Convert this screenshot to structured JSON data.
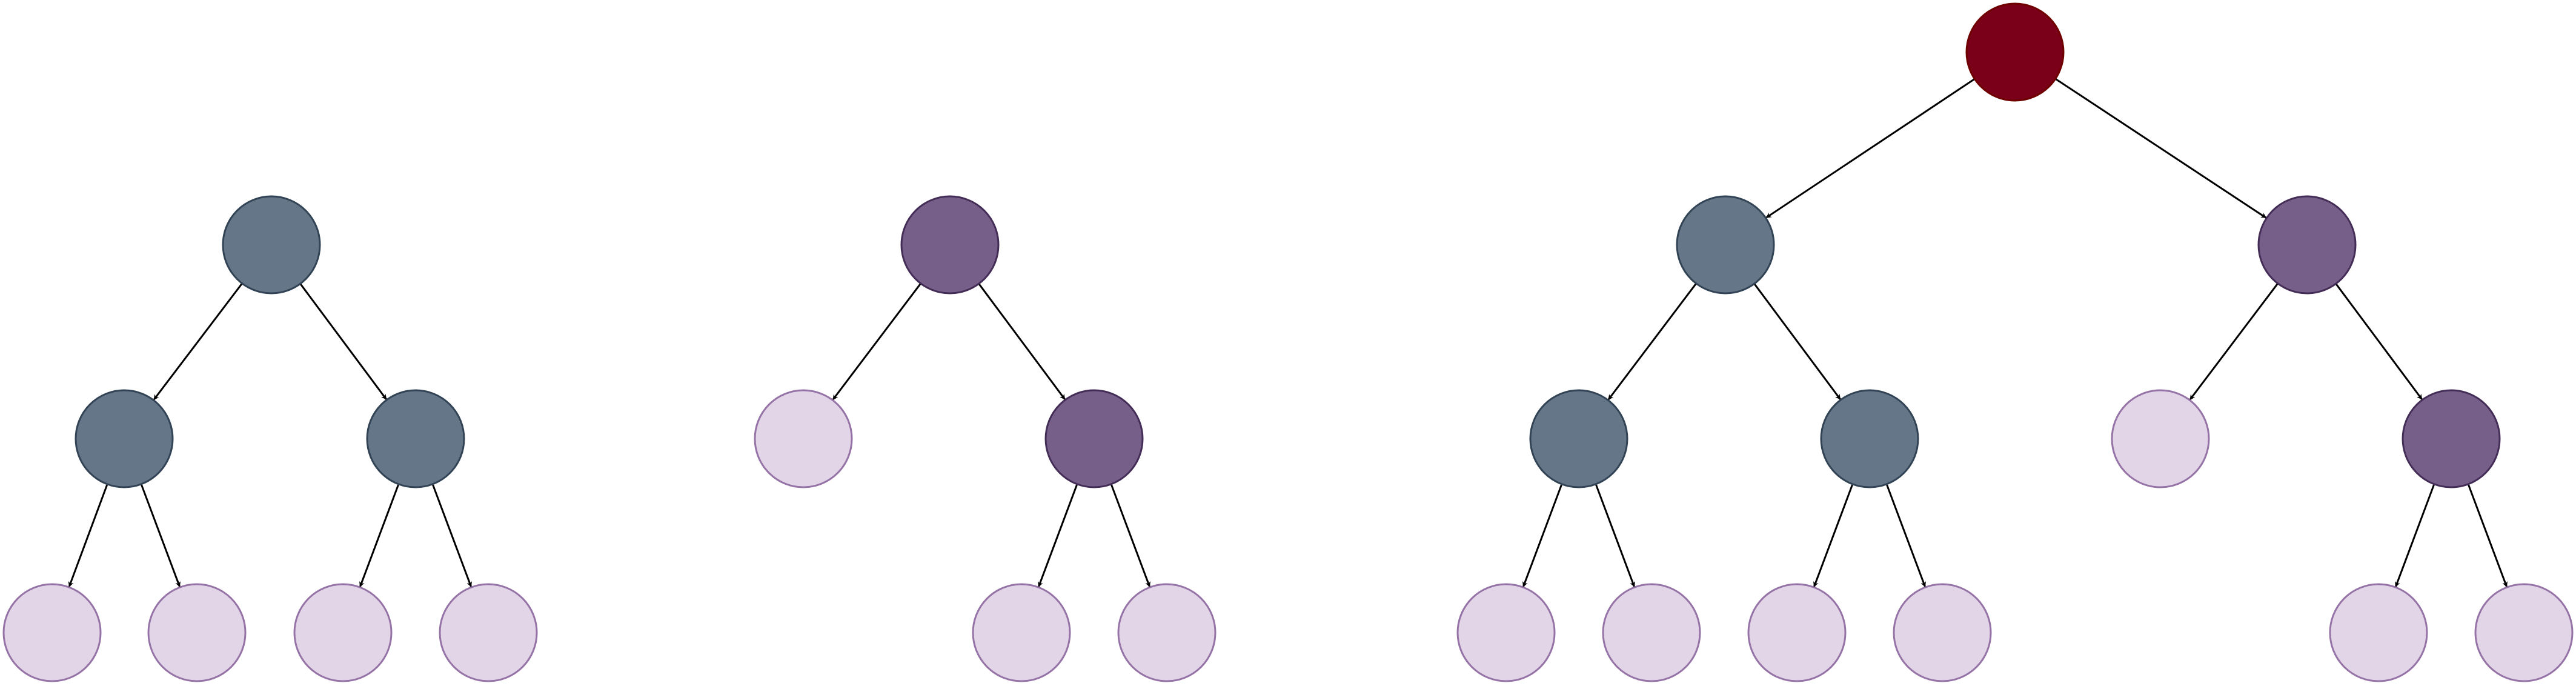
{
  "colors": {
    "slate": "#647687",
    "slate_stroke": "#314354",
    "purple": "#76608a",
    "purple_stroke": "#432d57",
    "light": "#e1d5e7",
    "light_stroke": "#9673a6",
    "red": "#7a0019",
    "red_stroke": "#6f0000",
    "edge": "#000000"
  },
  "trees": [
    {
      "name": "left-tree",
      "nodes": [
        {
          "id": "n1",
          "role": "slate"
        },
        {
          "id": "n2",
          "role": "slate"
        },
        {
          "id": "n3",
          "role": "slate"
        },
        {
          "id": "n4",
          "role": "light"
        },
        {
          "id": "n5",
          "role": "light"
        },
        {
          "id": "n6",
          "role": "light"
        },
        {
          "id": "n7",
          "role": "light"
        }
      ],
      "edges": [
        [
          "n1",
          "n2"
        ],
        [
          "n1",
          "n3"
        ],
        [
          "n2",
          "n4"
        ],
        [
          "n2",
          "n5"
        ],
        [
          "n3",
          "n6"
        ],
        [
          "n3",
          "n7"
        ]
      ]
    },
    {
      "name": "middle-tree",
      "nodes": [
        {
          "id": "n1",
          "role": "purple"
        },
        {
          "id": "n2",
          "role": "light"
        },
        {
          "id": "n3",
          "role": "purple"
        },
        {
          "id": "n4",
          "role": "light"
        },
        {
          "id": "n5",
          "role": "light"
        }
      ],
      "edges": [
        [
          "n1",
          "n2"
        ],
        [
          "n1",
          "n3"
        ],
        [
          "n3",
          "n4"
        ],
        [
          "n3",
          "n5"
        ]
      ]
    },
    {
      "name": "merged-tree",
      "nodes": [
        {
          "id": "root",
          "role": "red"
        },
        {
          "id": "a1",
          "role": "slate"
        },
        {
          "id": "a2",
          "role": "slate"
        },
        {
          "id": "a3",
          "role": "slate"
        },
        {
          "id": "a4",
          "role": "light"
        },
        {
          "id": "a5",
          "role": "light"
        },
        {
          "id": "a6",
          "role": "light"
        },
        {
          "id": "a7",
          "role": "light"
        },
        {
          "id": "b1",
          "role": "purple"
        },
        {
          "id": "b2",
          "role": "light"
        },
        {
          "id": "b3",
          "role": "purple"
        },
        {
          "id": "b4",
          "role": "light"
        },
        {
          "id": "b5",
          "role": "light"
        }
      ],
      "edges": [
        [
          "root",
          "a1"
        ],
        [
          "root",
          "b1"
        ],
        [
          "a1",
          "a2"
        ],
        [
          "a1",
          "a3"
        ],
        [
          "a2",
          "a4"
        ],
        [
          "a2",
          "a5"
        ],
        [
          "a3",
          "a6"
        ],
        [
          "a3",
          "a7"
        ],
        [
          "b1",
          "b2"
        ],
        [
          "b1",
          "b3"
        ],
        [
          "b3",
          "b4"
        ],
        [
          "b3",
          "b5"
        ]
      ]
    }
  ]
}
